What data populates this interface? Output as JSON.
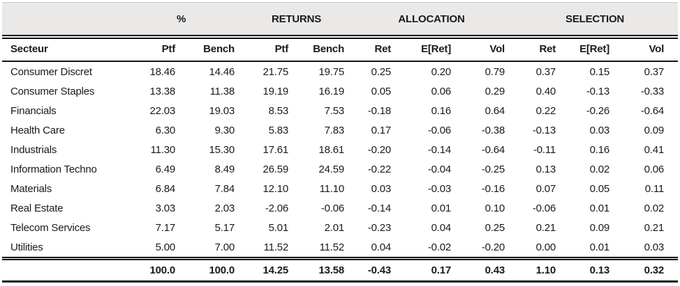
{
  "table": {
    "group_headers": [
      {
        "label": "",
        "span": 1
      },
      {
        "label": "%",
        "span": 2
      },
      {
        "label": "RETURNS",
        "span": 2
      },
      {
        "label": "ALLOCATION",
        "span": 3
      },
      {
        "label": "SELECTION",
        "span": 3
      }
    ],
    "columns": [
      "Secteur",
      "Ptf",
      "Bench",
      "Ptf",
      "Bench",
      "Ret",
      "E[Ret]",
      "Vol",
      "Ret",
      "E[Ret]",
      "Vol"
    ],
    "rows": [
      [
        "Consumer Discret",
        "18.46",
        "14.46",
        "21.75",
        "19.75",
        "0.25",
        "0.20",
        "0.79",
        "0.37",
        "0.15",
        "0.37"
      ],
      [
        "Consumer Staples",
        "13.38",
        "11.38",
        "19.19",
        "16.19",
        "0.05",
        "0.06",
        "0.29",
        "0.40",
        "-0.13",
        "-0.33"
      ],
      [
        "Financials",
        "22.03",
        "19.03",
        "8.53",
        "7.53",
        "-0.18",
        "0.16",
        "0.64",
        "0.22",
        "-0.26",
        "-0.64"
      ],
      [
        "Health Care",
        "6.30",
        "9.30",
        "5.83",
        "7.83",
        "0.17",
        "-0.06",
        "-0.38",
        "-0.13",
        "0.03",
        "0.09"
      ],
      [
        "Industrials",
        "11.30",
        "15.30",
        "17.61",
        "18.61",
        "-0.20",
        "-0.14",
        "-0.64",
        "-0.11",
        "0.16",
        "0.41"
      ],
      [
        "Information Techno",
        "6.49",
        "8.49",
        "26.59",
        "24.59",
        "-0.22",
        "-0.04",
        "-0.25",
        "0.13",
        "0.02",
        "0.06"
      ],
      [
        "Materials",
        "6.84",
        "7.84",
        "12.10",
        "11.10",
        "0.03",
        "-0.03",
        "-0.16",
        "0.07",
        "0.05",
        "0.11"
      ],
      [
        "Real Estate",
        "3.03",
        "2.03",
        "-2.06",
        "-0.06",
        "-0.14",
        "0.01",
        "0.10",
        "-0.06",
        "0.01",
        "0.02"
      ],
      [
        "Telecom Services",
        "7.17",
        "5.17",
        "5.01",
        "2.01",
        "-0.23",
        "0.04",
        "0.25",
        "0.21",
        "0.09",
        "0.21"
      ],
      [
        "Utilities",
        "5.00",
        "7.00",
        "11.52",
        "11.52",
        "0.04",
        "-0.02",
        "-0.20",
        "0.00",
        "0.01",
        "0.03"
      ]
    ],
    "total_row": [
      "",
      "100.0",
      "100.0",
      "14.25",
      "13.58",
      "-0.43",
      "0.17",
      "0.43",
      "1.10",
      "0.13",
      "0.32"
    ]
  },
  "colors": {
    "header_band_bg": "#eae9e8",
    "text": "#1a1a1a",
    "rule": "#141414"
  }
}
